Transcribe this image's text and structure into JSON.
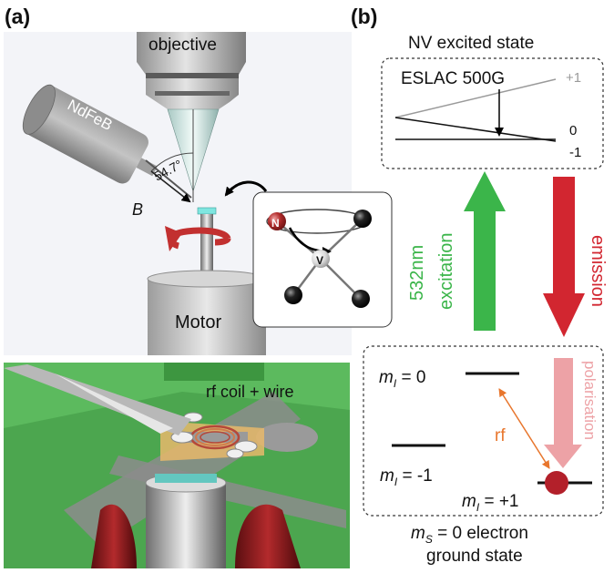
{
  "panel_a": {
    "label": "(a)",
    "objective": "objective",
    "magnet": "NdFeB",
    "angle": "54.7°",
    "field": "B",
    "molecule": {
      "nitrogen": "N",
      "vacancy": "V"
    },
    "motor": "Motor",
    "inset": "rf coil + wire"
  },
  "panel_b": {
    "label": "(b)",
    "excited_title": "NV excited state",
    "eslac": "ESLAC 500G",
    "levels": [
      "+1",
      "0",
      "-1"
    ],
    "excitation": [
      "532nm",
      "excitation"
    ],
    "emission": "emission",
    "polarisation": "polarisation",
    "rf": "rf",
    "ground_levels": {
      "m_symbol": "m",
      "m_sub": "I",
      "top_value": " = 0",
      "left_value": " = -1",
      "right_value": " = +1"
    },
    "ground_caption": {
      "m_symbol": "m",
      "m_sub": "S",
      "line1_rest": " = 0 electron",
      "line2": "ground state"
    }
  },
  "colors": {
    "excitation_green": "#3bb54a",
    "emission_red": "#d22630",
    "polarisation_pink": "#eda2a6",
    "rf_orange": "#e8762d",
    "motor_gray": "#cfcfcf",
    "board_green": "#4caf50"
  }
}
